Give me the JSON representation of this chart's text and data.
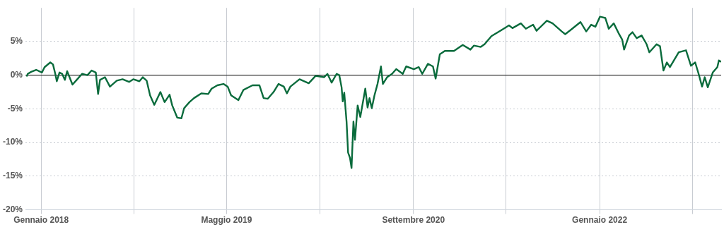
{
  "chart_data": {
    "type": "line",
    "xlim": [
      "2017-11-21",
      "2022-11-15"
    ],
    "ylim": [
      -20,
      10
    ],
    "xticks": [
      {
        "value": "2018-01-01",
        "label": "Gennaio 2018"
      },
      {
        "value": "2018-09-01",
        "label": null
      },
      {
        "value": "2019-05-01",
        "label": "Maggio 2019"
      },
      {
        "value": "2020-01-01",
        "label": null
      },
      {
        "value": "2020-09-01",
        "label": "Settembre 2020"
      },
      {
        "value": "2021-05-01",
        "label": null
      },
      {
        "value": "2022-01-01",
        "label": "Gennaio 2022"
      },
      {
        "value": "2022-09-01",
        "label": null
      }
    ],
    "yticks": [
      {
        "value": 5,
        "label": "5%"
      },
      {
        "value": 0,
        "label": "0%"
      },
      {
        "value": -5,
        "label": "-5%"
      },
      {
        "value": -10,
        "label": "-10%"
      },
      {
        "value": -15,
        "label": "-15%"
      },
      {
        "value": -20,
        "label": "-20%"
      }
    ],
    "grid": true,
    "legend": false,
    "marker": "none",
    "line_style": "solid",
    "ref_lines": [
      {
        "axis": "y",
        "value": 0,
        "label": null,
        "color": "#333333"
      }
    ],
    "series": [
      {
        "color": "#0a6b3c",
        "x": [
          "2017-11-25",
          "2017-11-27",
          "2017-12-06",
          "2017-12-19",
          "2018-01-03",
          "2018-01-10",
          "2018-01-25",
          "2018-02-01",
          "2018-02-07",
          "2018-02-11",
          "2018-02-18",
          "2018-02-25",
          "2018-03-04",
          "2018-03-10",
          "2018-03-24",
          "2018-04-04",
          "2018-04-18",
          "2018-05-02",
          "2018-05-13",
          "2018-05-24",
          "2018-05-30",
          "2018-06-04",
          "2018-06-17",
          "2018-06-30",
          "2018-07-18",
          "2018-08-02",
          "2018-08-19",
          "2018-08-30",
          "2018-09-15",
          "2018-09-24",
          "2018-10-04",
          "2018-10-13",
          "2018-10-24",
          "2018-11-09",
          "2018-11-20",
          "2018-12-03",
          "2018-12-10",
          "2018-12-23",
          "2019-01-03",
          "2019-01-10",
          "2019-01-24",
          "2019-02-05",
          "2019-02-24",
          "2019-03-14",
          "2019-03-23",
          "2019-04-07",
          "2019-04-23",
          "2019-05-04",
          "2019-05-13",
          "2019-06-01",
          "2019-06-14",
          "2019-07-08",
          "2019-07-26",
          "2019-08-06",
          "2019-08-17",
          "2019-09-01",
          "2019-09-14",
          "2019-09-28",
          "2019-10-06",
          "2019-10-15",
          "2019-11-08",
          "2019-12-02",
          "2019-12-20",
          "2020-01-11",
          "2020-01-20",
          "2020-01-31",
          "2020-02-13",
          "2020-02-20",
          "2020-02-26",
          "2020-02-29",
          "2020-03-04",
          "2020-03-10",
          "2020-03-14",
          "2020-03-19",
          "2020-03-23",
          "2020-03-28",
          "2020-04-01",
          "2020-04-08",
          "2020-04-15",
          "2020-04-28",
          "2020-05-04",
          "2020-05-09",
          "2020-05-15",
          "2020-05-22",
          "2020-05-30",
          "2020-06-08",
          "2020-06-13",
          "2020-06-24",
          "2020-07-07",
          "2020-07-18",
          "2020-08-04",
          "2020-08-13",
          "2020-09-02",
          "2020-09-15",
          "2020-09-24",
          "2020-10-09",
          "2020-10-22",
          "2020-10-29",
          "2020-11-09",
          "2020-11-22",
          "2020-12-16",
          "2021-01-08",
          "2021-01-28",
          "2021-02-06",
          "2021-02-24",
          "2021-03-06",
          "2021-03-24",
          "2021-04-19",
          "2021-05-09",
          "2021-05-18",
          "2021-06-09",
          "2021-06-22",
          "2021-07-11",
          "2021-07-20",
          "2021-08-16",
          "2021-08-31",
          "2021-09-24",
          "2021-10-03",
          "2021-10-19",
          "2021-11-12",
          "2021-11-27",
          "2021-12-10",
          "2021-12-21",
          "2022-01-02",
          "2022-01-16",
          "2022-01-25",
          "2022-02-07",
          "2022-02-21",
          "2022-03-01",
          "2022-03-06",
          "2022-03-19",
          "2022-03-28",
          "2022-04-08",
          "2022-04-21",
          "2022-05-04",
          "2022-05-11",
          "2022-05-30",
          "2022-06-08",
          "2022-06-17",
          "2022-06-26",
          "2022-07-04",
          "2022-07-27",
          "2022-08-15",
          "2022-08-28",
          "2022-09-08",
          "2022-09-17",
          "2022-09-26",
          "2022-10-03",
          "2022-10-11",
          "2022-10-24",
          "2022-11-05",
          "2022-11-09",
          "2022-11-15"
        ],
        "values": [
          -0.1,
          0.2,
          0.5,
          0.8,
          0.4,
          1.2,
          1.9,
          1.6,
          0.2,
          -0.9,
          0.4,
          0.2,
          -0.7,
          0.6,
          -1.4,
          -0.7,
          0.2,
          0,
          0.7,
          0.4,
          -2.8,
          -0.7,
          -0.3,
          -1.7,
          -0.8,
          -0.6,
          -1,
          -0.6,
          -0.9,
          -0.3,
          -0.8,
          -3,
          -4.4,
          -2.5,
          -4,
          -2.9,
          -4.5,
          -6.3,
          -6.4,
          -4.9,
          -4,
          -3.4,
          -2.7,
          -2.8,
          -2,
          -1.5,
          -1.3,
          -1.7,
          -3,
          -3.7,
          -2.2,
          -1.5,
          -1.5,
          -3.4,
          -3.5,
          -2.5,
          -1.3,
          -1.7,
          -2.7,
          -1.7,
          -0.6,
          -1.2,
          -0.1,
          -0.3,
          0.2,
          -1.1,
          0.2,
          0,
          -1.8,
          -3.9,
          -2.6,
          -6.9,
          -11.5,
          -12.3,
          -13.8,
          -6.9,
          -9.6,
          -4.5,
          -6.2,
          -2,
          -4.8,
          -3.4,
          -4.9,
          -3,
          -1.3,
          1.3,
          -1.3,
          -0.3,
          0.2,
          0.9,
          0.2,
          1.3,
          0.9,
          1.2,
          0.2,
          1.7,
          1.3,
          -0.5,
          3.1,
          3.6,
          3.6,
          4.5,
          3.8,
          4.4,
          4.2,
          4.6,
          5.8,
          6.7,
          7.4,
          7,
          7.7,
          6.9,
          7.5,
          6.6,
          8.1,
          7.7,
          6.5,
          6.1,
          6.8,
          7.9,
          6.5,
          7.5,
          7.2,
          8.7,
          8.5,
          6.9,
          7.7,
          6.1,
          5.3,
          3.8,
          5.9,
          6.4,
          5.5,
          5.9,
          4.6,
          3.4,
          4.6,
          4.3,
          0.7,
          1.9,
          1.2,
          3.4,
          3.7,
          1.4,
          1.9,
          0.2,
          -1.7,
          -0.3,
          -1.8,
          0.4,
          1.2,
          2.2,
          2
        ]
      }
    ]
  }
}
